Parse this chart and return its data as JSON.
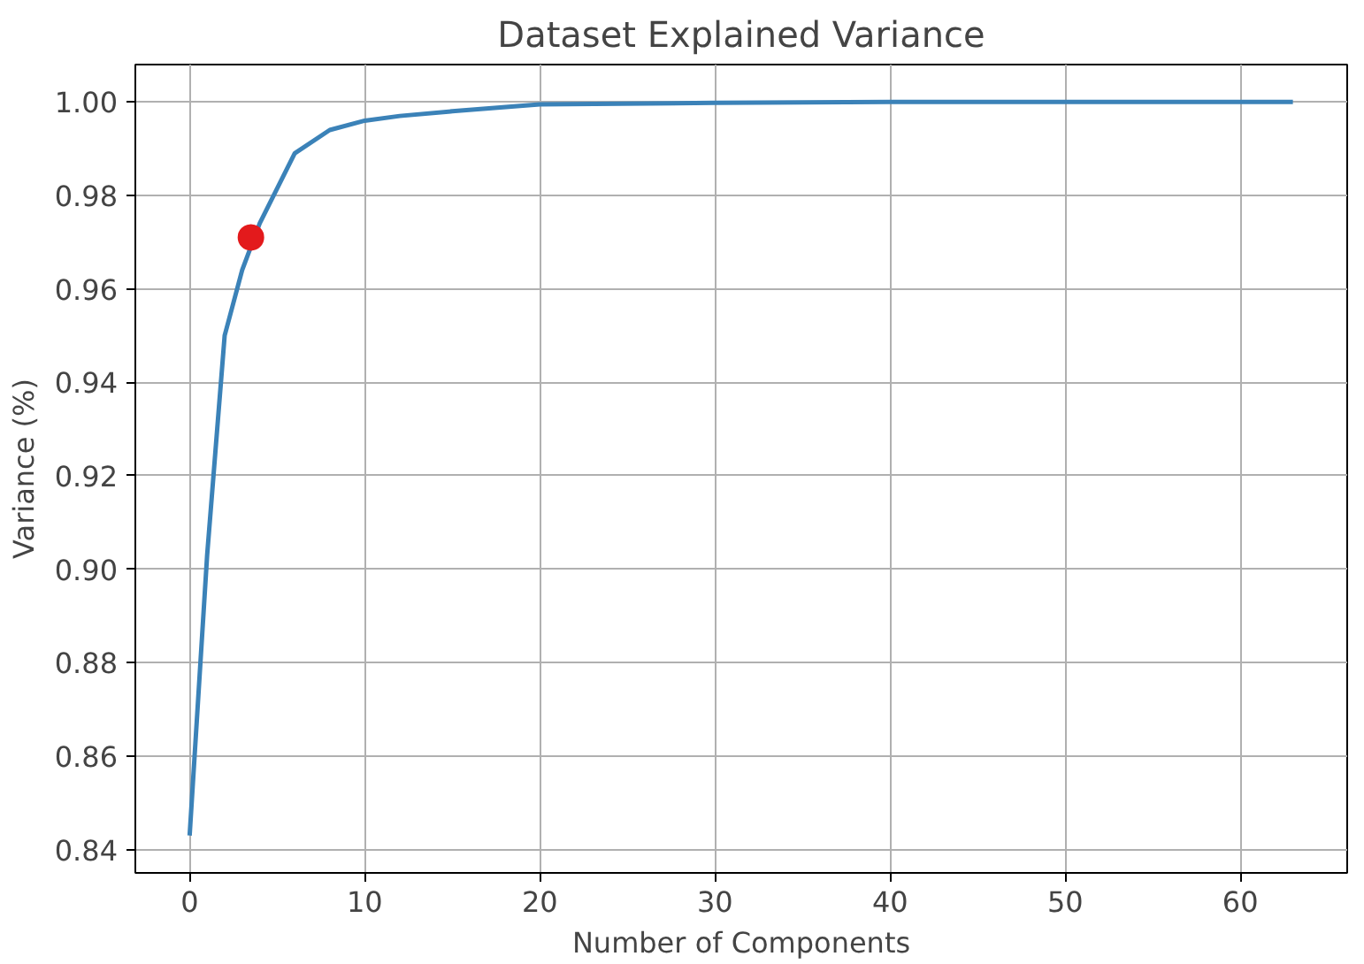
{
  "chart_data": {
    "type": "line",
    "title": "Dataset Explained Variance",
    "xlabel": "Number of Components",
    "ylabel": "Variance (%)",
    "xlim": [
      -3.1,
      66.1
    ],
    "ylim": [
      0.835,
      1.008
    ],
    "xticks": [
      0,
      10,
      20,
      30,
      40,
      50,
      60
    ],
    "yticks": [
      {
        "value": 0.84,
        "label": "0.84"
      },
      {
        "value": 0.86,
        "label": "0.86"
      },
      {
        "value": 0.88,
        "label": "0.88"
      },
      {
        "value": 0.9,
        "label": "0.90"
      },
      {
        "value": 0.92,
        "label": "0.92"
      },
      {
        "value": 0.94,
        "label": "0.94"
      },
      {
        "value": 0.96,
        "label": "0.96"
      },
      {
        "value": 0.98,
        "label": "0.98"
      },
      {
        "value": 1.0,
        "label": "1.00"
      }
    ],
    "grid": true,
    "series": [
      {
        "color": "#3b82b8",
        "x": [
          0,
          1,
          2,
          3,
          4,
          6,
          8,
          10,
          12,
          15,
          20,
          30,
          40,
          50,
          63
        ],
        "values": [
          0.843,
          0.903,
          0.95,
          0.964,
          0.974,
          0.989,
          0.994,
          0.996,
          0.997,
          0.998,
          0.9995,
          0.9998,
          1.0,
          1.0,
          1.0
        ]
      },
      {
        "type": "scatter",
        "color": "#e31a1c",
        "marker": "circle",
        "x": [
          3.5
        ],
        "values": [
          0.971
        ]
      }
    ]
  }
}
